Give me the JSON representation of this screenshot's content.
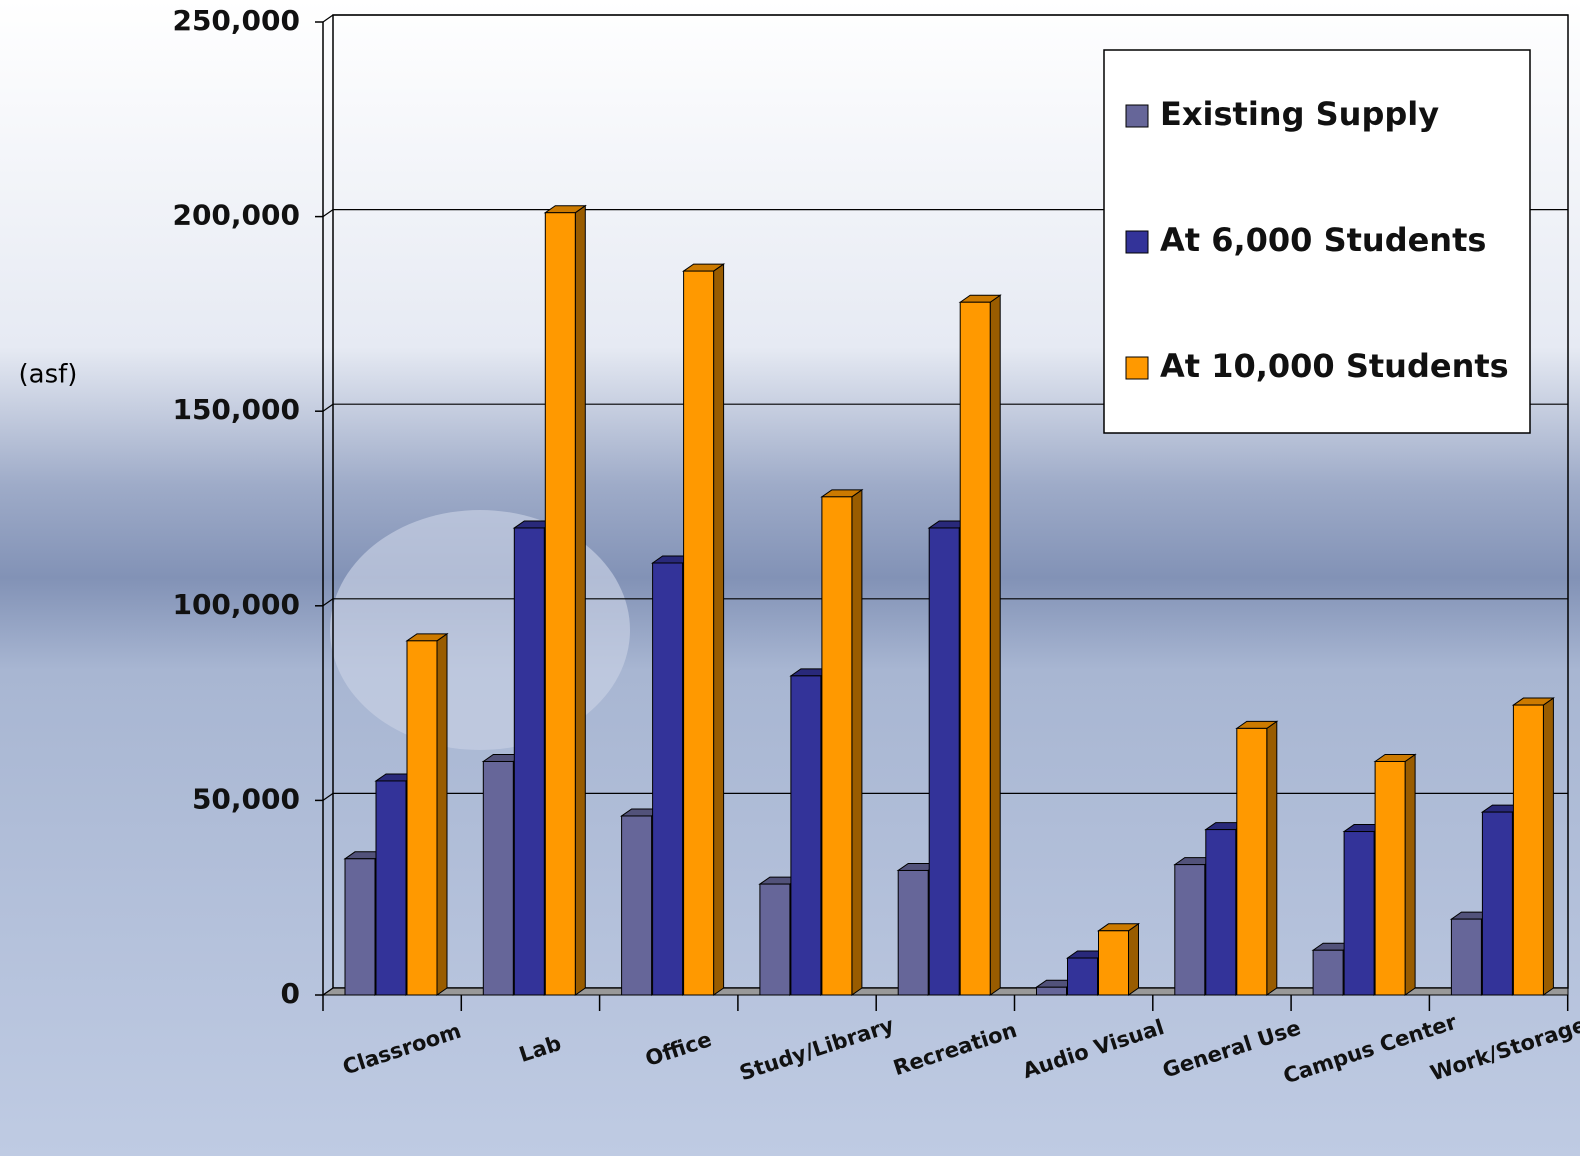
{
  "chart_data": {
    "type": "bar3d",
    "y_label": "(asf)",
    "categories": [
      "Classroom",
      "Lab",
      "Office",
      "Study/Library",
      "Recreation",
      "Audio Visual",
      "General Use",
      "Campus Center",
      "Work/Storage"
    ],
    "series": [
      {
        "name": "Existing Supply",
        "color": "#666699",
        "values": [
          35000,
          60000,
          46000,
          28500,
          32000,
          2000,
          33500,
          11500,
          19500
        ]
      },
      {
        "name": "At 6,000 Students",
        "color": "#333399",
        "values": [
          55000,
          120000,
          111000,
          82000,
          120000,
          9500,
          42500,
          42000,
          47000
        ]
      },
      {
        "name": "At 10,000 Students",
        "color": "#ff9900",
        "values": [
          91000,
          201000,
          186000,
          128000,
          178000,
          16500,
          68500,
          60000,
          74500
        ]
      }
    ],
    "ylim": [
      0,
      250000
    ],
    "yticks": [
      0,
      {
        "value": 50000,
        "label": "50,000"
      },
      {
        "value": 100000,
        "label": "100,000"
      },
      {
        "value": 150000,
        "label": "150,000"
      },
      {
        "value": 200000,
        "label": "200,000"
      },
      {
        "value": 250000,
        "label": "250,000"
      }
    ],
    "grid": true,
    "legend": "top-right"
  }
}
